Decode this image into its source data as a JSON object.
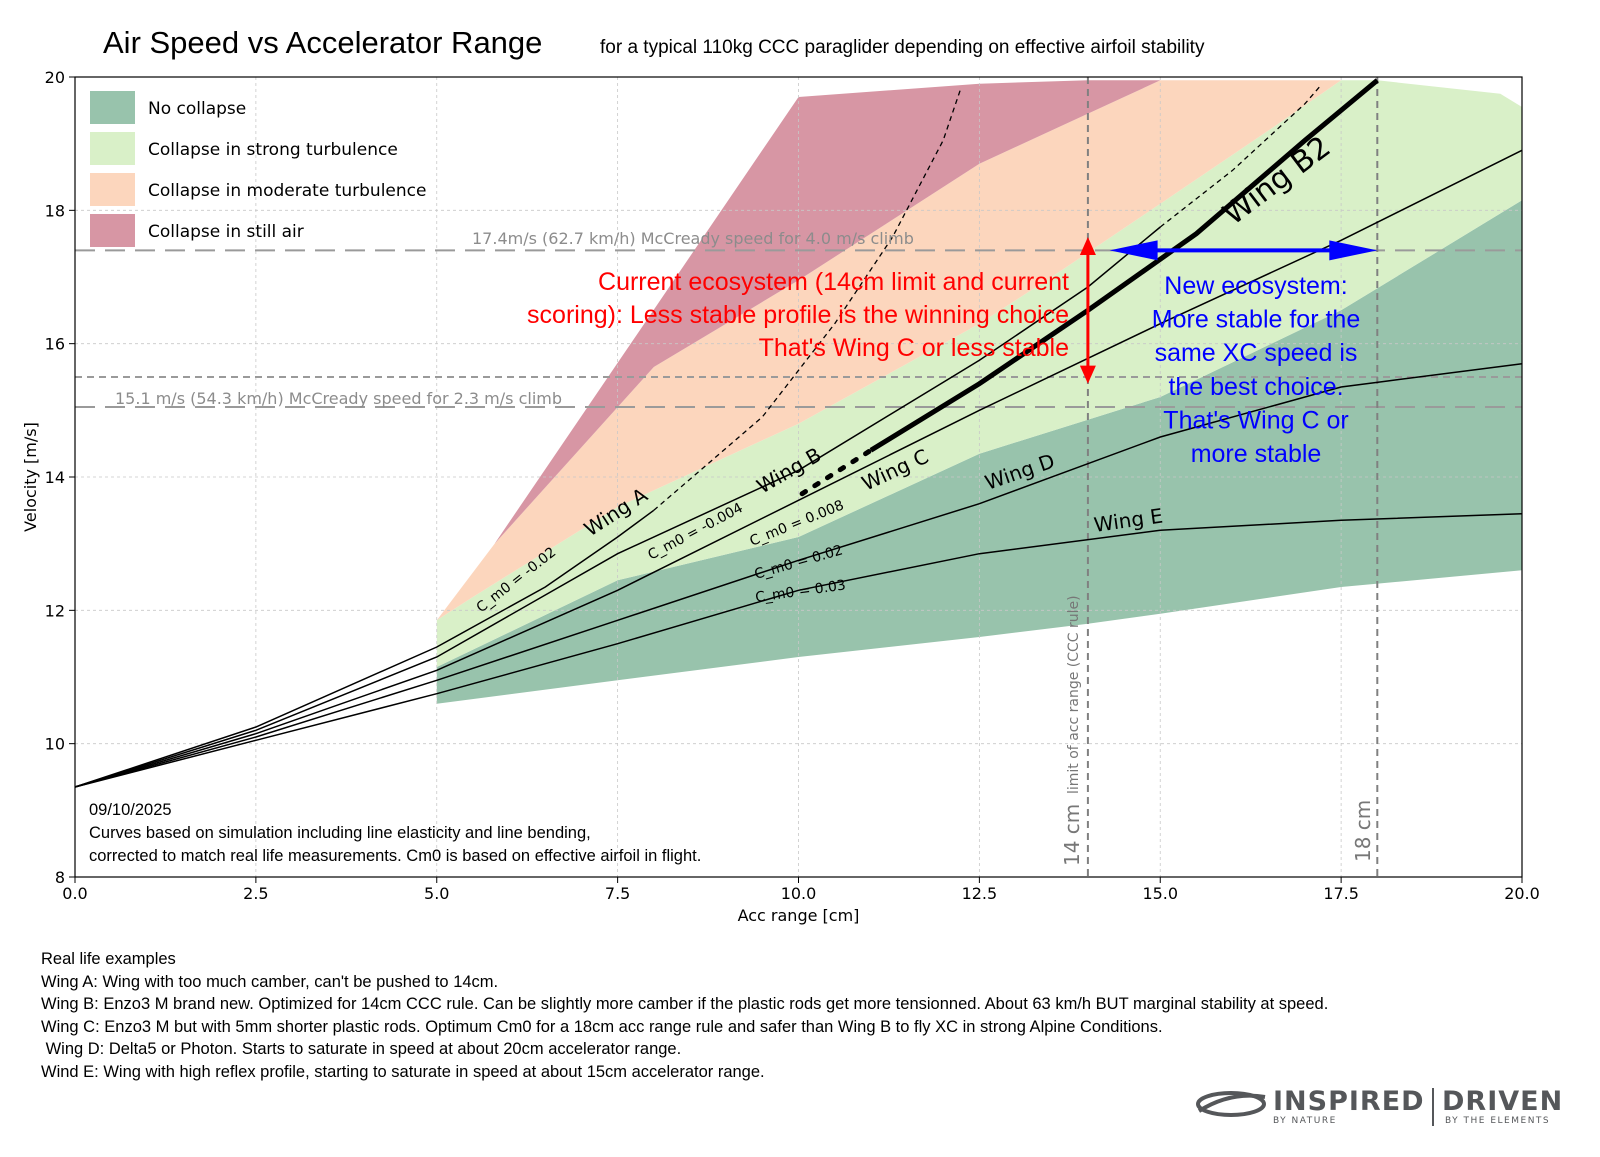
{
  "chart_data": {
    "type": "line",
    "title": "Air Speed vs Accelerator Range",
    "subtitle": "for a typical 110kg CCC paraglider depending on effective airfoil stability",
    "xlabel": "Acc range [cm]",
    "ylabel": "Velocity [m/s]",
    "xlim": [
      0,
      20
    ],
    "ylim": [
      8,
      20
    ],
    "xticks": [
      "0.0",
      "2.5",
      "5.0",
      "7.5",
      "10.0",
      "12.5",
      "15.0",
      "17.5",
      "20.0"
    ],
    "yticks": [
      "8",
      "10",
      "12",
      "14",
      "16",
      "18",
      "20"
    ],
    "grid": true,
    "legend_position": "top-left",
    "legend": [
      {
        "label": "No collapse",
        "color": "#98c3ac"
      },
      {
        "label": "Collapse in strong turbulence",
        "color": "#d9f0c8"
      },
      {
        "label": "Collapse in moderate turbulence",
        "color": "#fcd6bd"
      },
      {
        "label": "Collapse in still air",
        "color": "#d796a4"
      }
    ],
    "regions": [
      {
        "name": "No collapse",
        "color": "#98c3ac",
        "points": [
          [
            5.0,
            10.6
          ],
          [
            7.5,
            10.95
          ],
          [
            10.0,
            11.3
          ],
          [
            12.5,
            11.6
          ],
          [
            14.0,
            11.8
          ],
          [
            15.0,
            11.95
          ],
          [
            17.5,
            12.35
          ],
          [
            20.0,
            12.6
          ],
          [
            20.0,
            18.15
          ],
          [
            17.5,
            16.5
          ],
          [
            15.0,
            15.2
          ],
          [
            12.5,
            14.35
          ],
          [
            10.0,
            13.1
          ],
          [
            7.5,
            12.45
          ],
          [
            5.0,
            11.15
          ]
        ]
      },
      {
        "name": "Collapse in strong turbulence",
        "color": "#d9f0c8",
        "points": [
          [
            5.0,
            11.15
          ],
          [
            7.5,
            12.45
          ],
          [
            10.0,
            13.1
          ],
          [
            12.5,
            14.35
          ],
          [
            15.0,
            15.2
          ],
          [
            17.5,
            16.5
          ],
          [
            20.0,
            18.15
          ],
          [
            20.0,
            19.55
          ],
          [
            19.7,
            19.75
          ],
          [
            18.0,
            19.95
          ],
          [
            17.5,
            19.95
          ],
          [
            16.5,
            19.2
          ],
          [
            15.0,
            18.1
          ],
          [
            13.5,
            17.0
          ],
          [
            12.5,
            16.3
          ],
          [
            10.0,
            14.8
          ],
          [
            7.5,
            13.55
          ],
          [
            5.5,
            12.2
          ],
          [
            5.0,
            11.85
          ]
        ]
      },
      {
        "name": "Collapse in moderate turbulence",
        "color": "#fcd6bd",
        "points": [
          [
            5.0,
            11.85
          ],
          [
            5.5,
            12.2
          ],
          [
            7.5,
            13.55
          ],
          [
            10.0,
            14.8
          ],
          [
            12.5,
            16.3
          ],
          [
            13.5,
            17.0
          ],
          [
            15.0,
            18.1
          ],
          [
            16.5,
            19.2
          ],
          [
            17.5,
            19.95
          ],
          [
            16.0,
            19.95
          ],
          [
            15.0,
            19.95
          ],
          [
            14.5,
            19.7
          ],
          [
            12.5,
            18.7
          ],
          [
            10.0,
            16.95
          ],
          [
            8.0,
            15.65
          ],
          [
            5.8,
            13.0
          ]
        ]
      },
      {
        "name": "Collapse in still air",
        "color": "#d796a4",
        "points": [
          [
            5.8,
            13.0
          ],
          [
            8.0,
            15.65
          ],
          [
            10.0,
            16.95
          ],
          [
            12.5,
            18.7
          ],
          [
            14.5,
            19.7
          ],
          [
            15.0,
            19.95
          ],
          [
            14.0,
            19.95
          ],
          [
            12.5,
            19.9
          ],
          [
            10.0,
            19.7
          ]
        ]
      }
    ],
    "series": [
      {
        "name": "Wing A",
        "cm0": "C_m0 = -0.02",
        "style": "solid",
        "points": [
          [
            0,
            9.35
          ],
          [
            2.5,
            10.25
          ],
          [
            5.0,
            11.45
          ],
          [
            6.5,
            12.35
          ],
          [
            7.5,
            13.1
          ],
          [
            8.0,
            13.5
          ]
        ]
      },
      {
        "name": "Wing A",
        "cm0": "",
        "style": "dashed-thin",
        "points": [
          [
            8.0,
            13.5
          ],
          [
            9.5,
            14.9
          ],
          [
            10.5,
            16.3
          ],
          [
            11.3,
            17.6
          ],
          [
            12.0,
            19.05
          ],
          [
            12.25,
            19.85
          ]
        ]
      },
      {
        "name": "Wing B",
        "cm0": "C_m0 = -0.004",
        "style": "solid",
        "points": [
          [
            0,
            9.35
          ],
          [
            2.5,
            10.2
          ],
          [
            5.0,
            11.3
          ],
          [
            7.5,
            12.85
          ],
          [
            10.0,
            14.1
          ],
          [
            12.5,
            15.75
          ],
          [
            14.0,
            16.85
          ],
          [
            15.0,
            17.75
          ]
        ]
      },
      {
        "name": "Wing B",
        "cm0": "",
        "style": "dashed-thin",
        "points": [
          [
            15.0,
            17.75
          ],
          [
            16.0,
            18.6
          ],
          [
            17.0,
            19.6
          ],
          [
            17.2,
            19.85
          ]
        ]
      },
      {
        "name": "Wing C",
        "cm0": "C_m0 = 0.008",
        "style": "solid",
        "points": [
          [
            0,
            9.35
          ],
          [
            2.5,
            10.15
          ],
          [
            5.0,
            11.1
          ],
          [
            7.5,
            12.3
          ],
          [
            10.0,
            13.65
          ],
          [
            12.5,
            15.0
          ],
          [
            15.0,
            16.3
          ],
          [
            17.5,
            17.55
          ],
          [
            20.0,
            18.9
          ]
        ]
      },
      {
        "name": "Wing D",
        "cm0": "C_m0 = 0.02",
        "style": "solid",
        "points": [
          [
            0,
            9.35
          ],
          [
            2.5,
            10.1
          ],
          [
            5.0,
            10.95
          ],
          [
            7.5,
            11.85
          ],
          [
            10.0,
            12.75
          ],
          [
            12.5,
            13.6
          ],
          [
            15.0,
            14.6
          ],
          [
            17.5,
            15.35
          ],
          [
            20.0,
            15.7
          ]
        ]
      },
      {
        "name": "Wing E",
        "cm0": "C_m0 = 0.03",
        "style": "solid",
        "points": [
          [
            0,
            9.35
          ],
          [
            2.5,
            10.05
          ],
          [
            5.0,
            10.75
          ],
          [
            7.5,
            11.5
          ],
          [
            10.0,
            12.3
          ],
          [
            12.5,
            12.85
          ],
          [
            15.0,
            13.2
          ],
          [
            17.5,
            13.35
          ],
          [
            20.0,
            13.45
          ]
        ]
      },
      {
        "name": "Wing B2",
        "cm0": "",
        "style": "thick",
        "points": [
          [
            11.0,
            14.4
          ],
          [
            12.5,
            15.4
          ],
          [
            14.0,
            16.5
          ],
          [
            15.5,
            17.65
          ],
          [
            17.0,
            19.05
          ],
          [
            18.0,
            19.95
          ]
        ]
      },
      {
        "name": "",
        "cm0": "",
        "style": "thick-dotted",
        "points": [
          [
            10.05,
            13.75
          ],
          [
            11.0,
            14.4
          ]
        ]
      }
    ],
    "reference_lines": [
      {
        "type": "h",
        "value": 17.4,
        "label": "17.4m/s (62.7 km/h) McCready speed for 4.0 m/s climb",
        "style": "long-dash"
      },
      {
        "type": "h",
        "value": 15.5,
        "label": "",
        "style": "short-dash"
      },
      {
        "type": "h",
        "value": 15.05,
        "label": "15.1 m/s (54.3 km/h) McCready speed for 2.3 m/s climb",
        "style": "long-dash"
      },
      {
        "type": "v",
        "value": 14.0,
        "label": "14 cm",
        "sublabel": "limit of acc range (CCC rule)",
        "style": "short-dash"
      },
      {
        "type": "v",
        "value": 18.0,
        "label": "18 cm",
        "sublabel": "",
        "style": "short-dash"
      }
    ],
    "annotations": {
      "current_ecosystem": [
        "Current ecosystem (14cm limit and current",
        "scoring): Less stable profile is the winning choice",
        "That's Wing C or less stable"
      ],
      "new_ecosystem": [
        "New ecosystem:",
        "More stable for the",
        "same XC speed is",
        "the best choice.",
        "That's Wing C or",
        "more stable"
      ],
      "red_arrow": {
        "x": 14.0,
        "y_from": 15.4,
        "y_to": 17.6,
        "color": "#ff0000"
      },
      "blue_arrow": {
        "y": 17.4,
        "x_from": 14.3,
        "x_to": 18.0,
        "color": "#0000ff"
      },
      "footnote": [
        "09/10/2025",
        "Curves based on simulation including line elasticity and line bending,",
        "corrected to match real life measurements. Cm0 is based on effective airfoil in flight."
      ]
    }
  },
  "notes": {
    "heading": "Real life examples",
    "lines": [
      "Wing A: Wing with too much camber, can't be pushed to 14cm.",
      "Wing B: Enzo3 M brand new. Optimized for 14cm CCC rule. Can be slightly more camber if the plastic rods get more tensionned. About 63 km/h BUT marginal stability at speed.",
      "Wing C: Enzo3 M but with 5mm shorter plastic rods. Optimum Cm0 for a 18cm acc range rule and safer than Wing B to fly XC in strong Alpine Conditions.",
      " Wing D: Delta5 or Photon. Starts to saturate in speed at about 20cm accelerator range.",
      "Wind E: Wing with high reflex profile, starting to saturate in speed at about 15cm accelerator range."
    ]
  },
  "logo": {
    "word1": "INSPIRED",
    "tag1": "BY NATURE",
    "word2": "DRIVEN",
    "tag2": "BY THE ELEMENTS",
    "color": "#55575a"
  }
}
